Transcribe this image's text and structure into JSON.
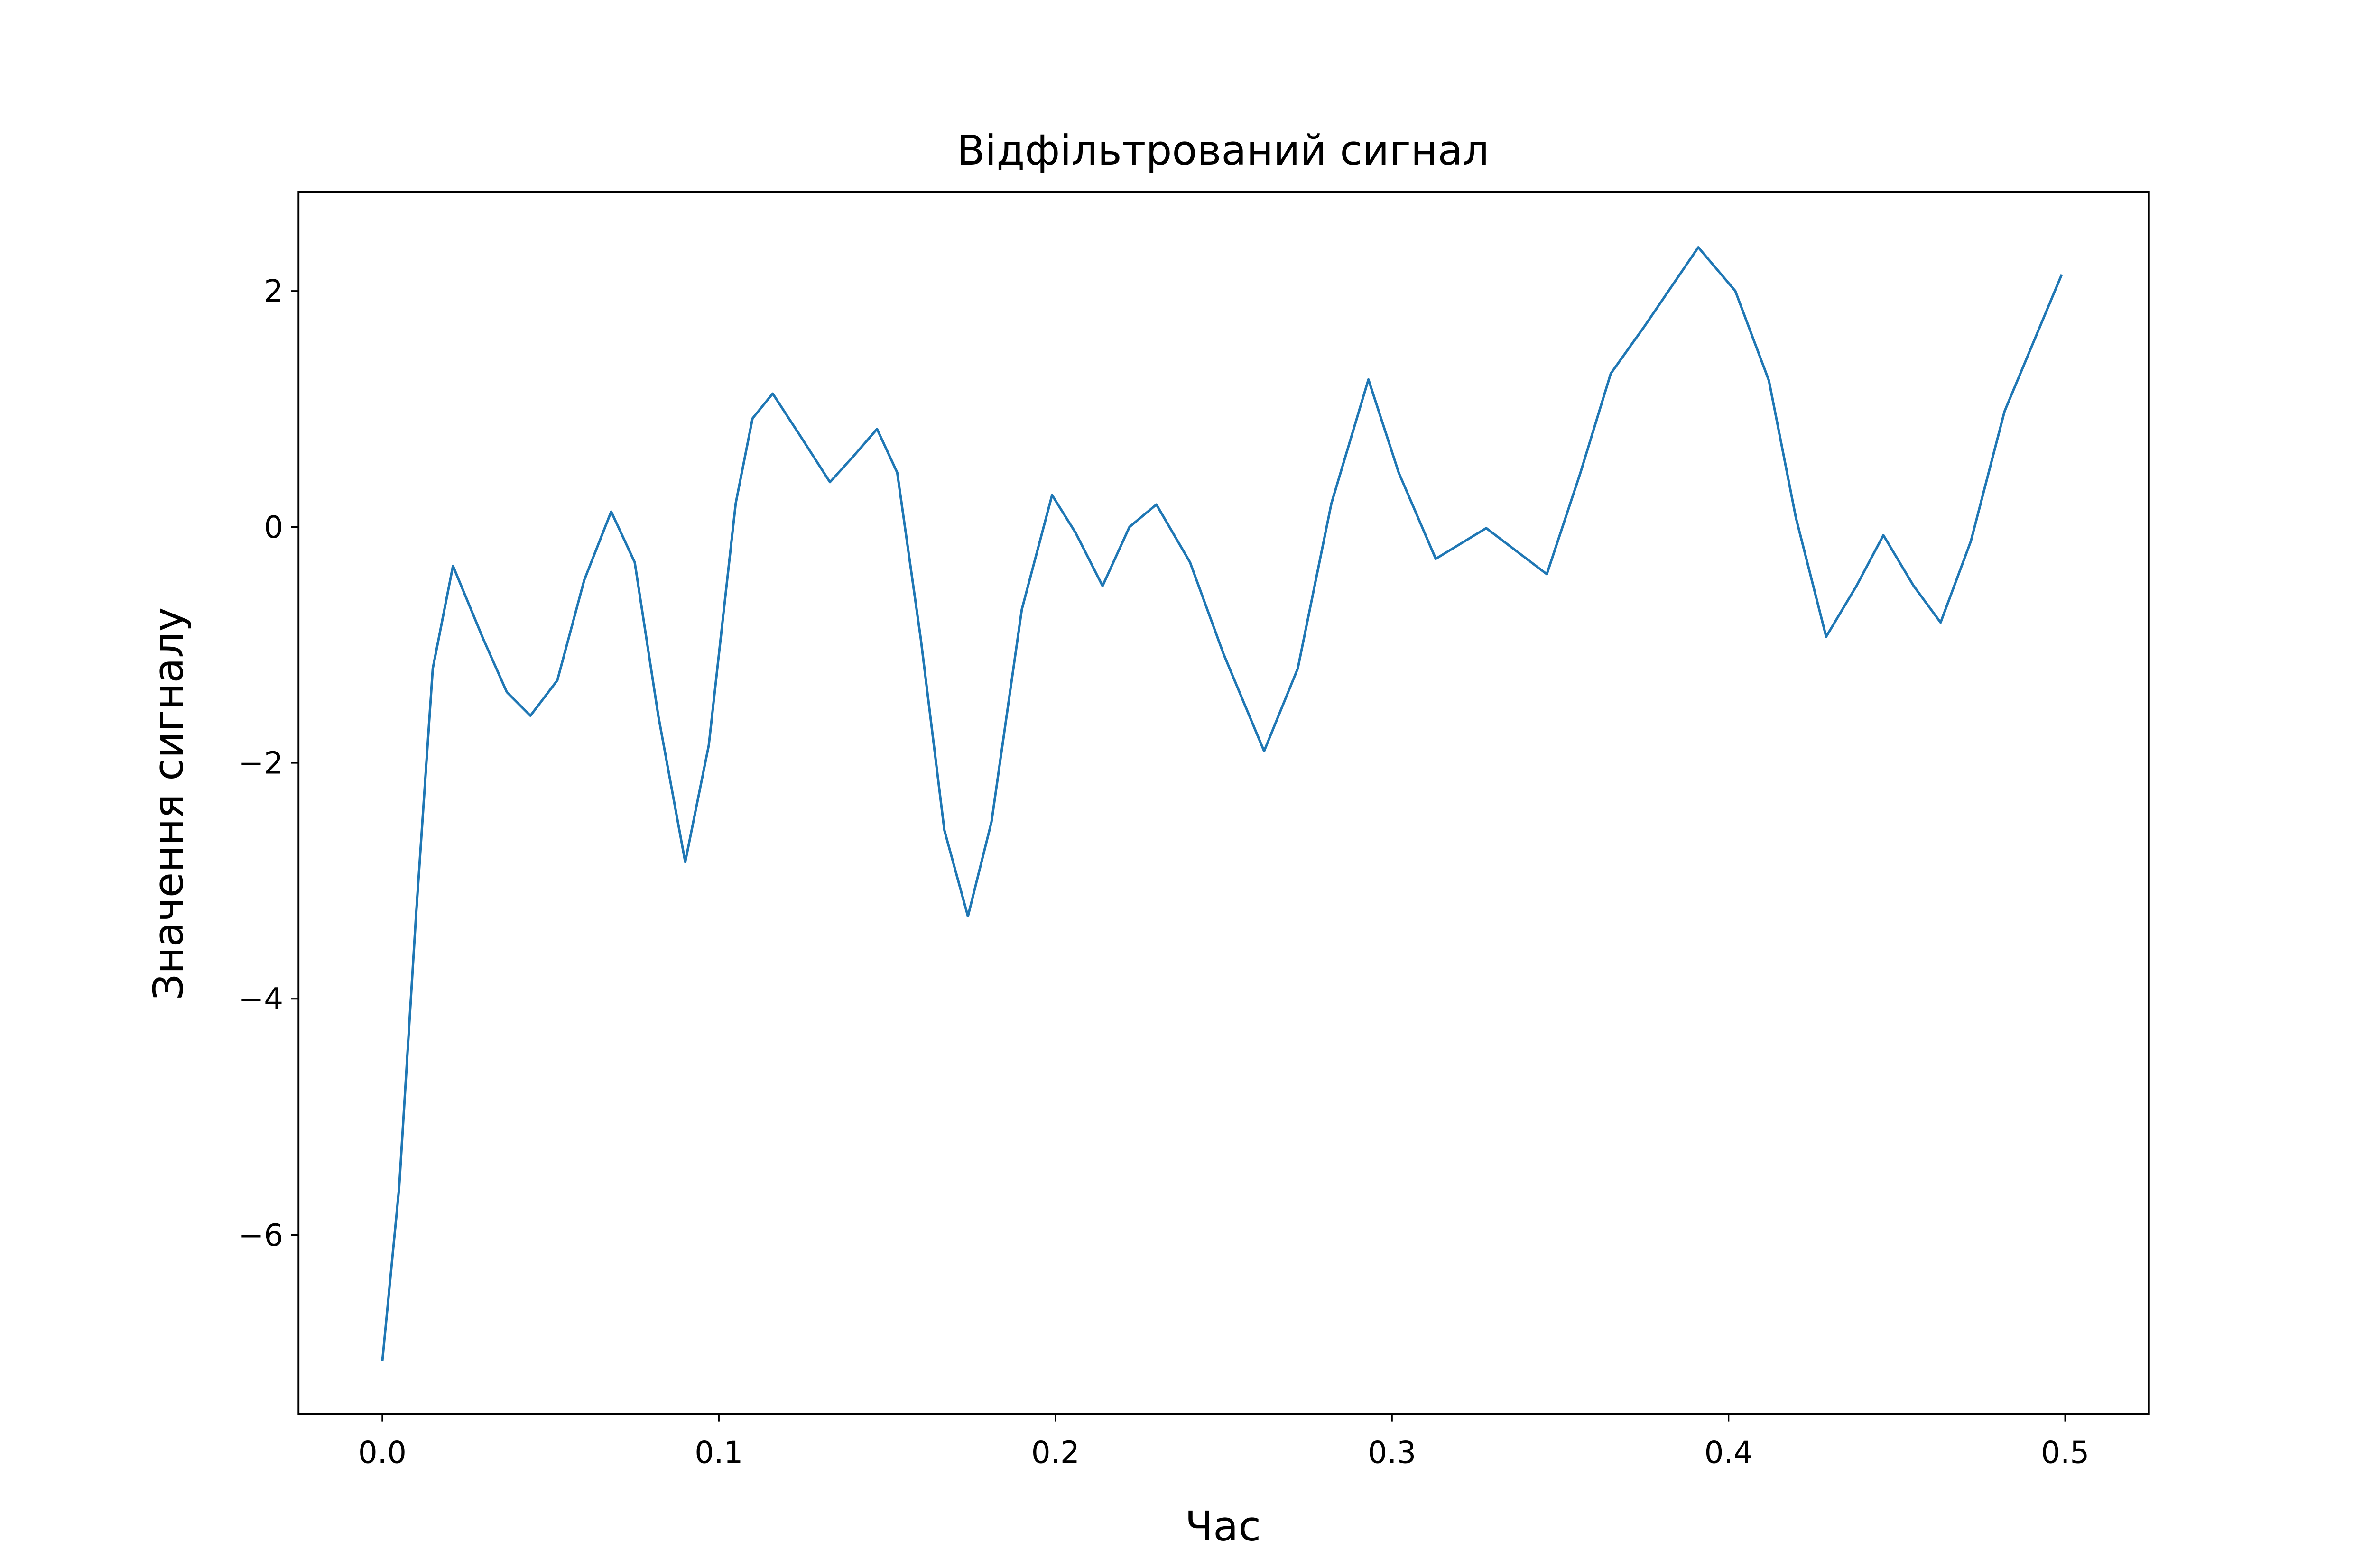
{
  "chart_data": {
    "type": "line",
    "title": "Відфільтрований сигнал",
    "xlabel": "Час",
    "ylabel": "Значення сигналу",
    "x": [
      0.0,
      0.005,
      0.01,
      0.015,
      0.021,
      0.03,
      0.037,
      0.044,
      0.052,
      0.06,
      0.068,
      0.075,
      0.082,
      0.09,
      0.097,
      0.105,
      0.11,
      0.116,
      0.124,
      0.133,
      0.14,
      0.147,
      0.153,
      0.16,
      0.167,
      0.174,
      0.181,
      0.19,
      0.199,
      0.206,
      0.214,
      0.222,
      0.23,
      0.24,
      0.25,
      0.262,
      0.272,
      0.282,
      0.293,
      0.302,
      0.313,
      0.328,
      0.346,
      0.356,
      0.365,
      0.375,
      0.391,
      0.402,
      0.412,
      0.42,
      0.429,
      0.438,
      0.446,
      0.455,
      0.463,
      0.472,
      0.482,
      0.499
    ],
    "series": [
      {
        "color": "#1f77b4",
        "values": [
          -7.07,
          -5.6,
          -3.3,
          -1.2,
          -0.33,
          -0.95,
          -1.4,
          -1.6,
          -1.3,
          -0.45,
          0.13,
          -0.3,
          -1.6,
          -2.84,
          -1.85,
          0.2,
          0.92,
          1.13,
          0.78,
          0.38,
          0.6,
          0.83,
          0.46,
          -0.95,
          -2.57,
          -3.3,
          -2.5,
          -0.7,
          0.27,
          -0.05,
          -0.5,
          0.0,
          0.19,
          -0.3,
          -1.08,
          -1.9,
          -1.2,
          0.2,
          1.25,
          0.46,
          -0.27,
          -0.01,
          -0.4,
          0.46,
          1.3,
          1.7,
          2.37,
          2.0,
          1.24,
          0.08,
          -0.93,
          -0.5,
          -0.07,
          -0.5,
          -0.81,
          -0.12,
          0.98,
          2.14
        ]
      }
    ],
    "xlim": [
      -0.0249,
      0.5249
    ],
    "ylim": [
      -7.52,
      2.84
    ],
    "xticks": [
      {
        "value": 0,
        "label": "0.0"
      },
      0.1,
      0.2,
      0.3,
      0.4,
      0.5
    ],
    "yticks": [
      {
        "value": -6,
        "label": "−6"
      },
      {
        "value": -4,
        "label": "−4"
      },
      {
        "value": -2,
        "label": "−2"
      },
      0,
      2
    ]
  }
}
